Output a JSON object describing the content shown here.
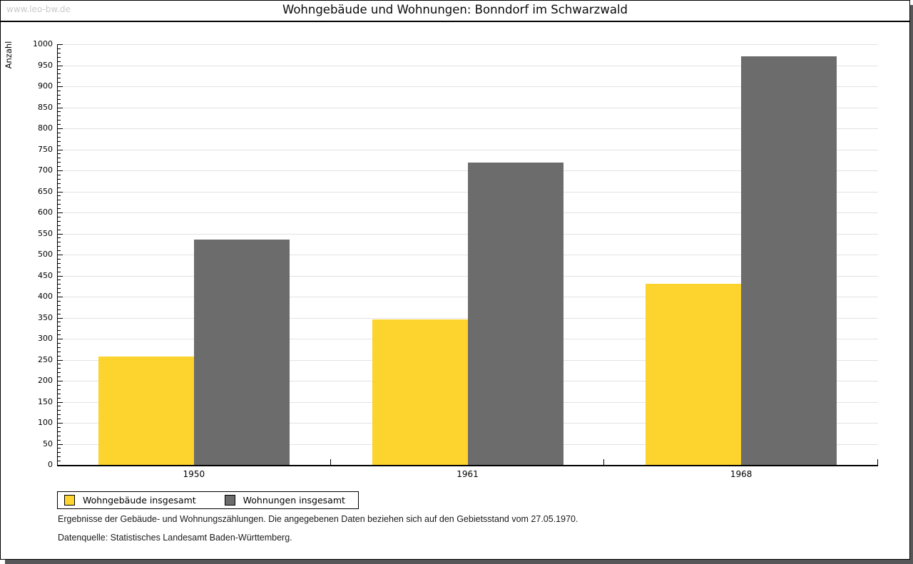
{
  "watermark": "www.leo-bw.de",
  "title": "Wohngebäude und Wohnungen: Bonndorf im Schwarzwald",
  "footnotes": [
    "Ergebnisse der Gebäude- und Wohnungszählungen. Die angegebenen Daten beziehen sich auf den Gebietsstand vom 27.05.1970.",
    "Datenquelle: Statistisches Landesamt Baden-Württemberg."
  ],
  "chart_data": {
    "type": "bar",
    "title": "Wohngebäude und Wohnungen: Bonndorf im Schwarzwald",
    "xlabel": "",
    "ylabel": "Anzahl",
    "categories": [
      "1950",
      "1961",
      "1968"
    ],
    "series": [
      {
        "name": "Wohngebäude insgesamt",
        "color": "#FCD42D",
        "values": [
          258,
          346,
          430
        ]
      },
      {
        "name": "Wohnungen insgesamt",
        "color": "#6C6C6C",
        "values": [
          536,
          719,
          971
        ]
      }
    ],
    "ylim": [
      0,
      1000
    ],
    "ytick_step": 50,
    "yminortick_step": 10,
    "grid": "horizontal",
    "gridline_color": "#e2e2e2",
    "legend_position": "bottom-left"
  }
}
